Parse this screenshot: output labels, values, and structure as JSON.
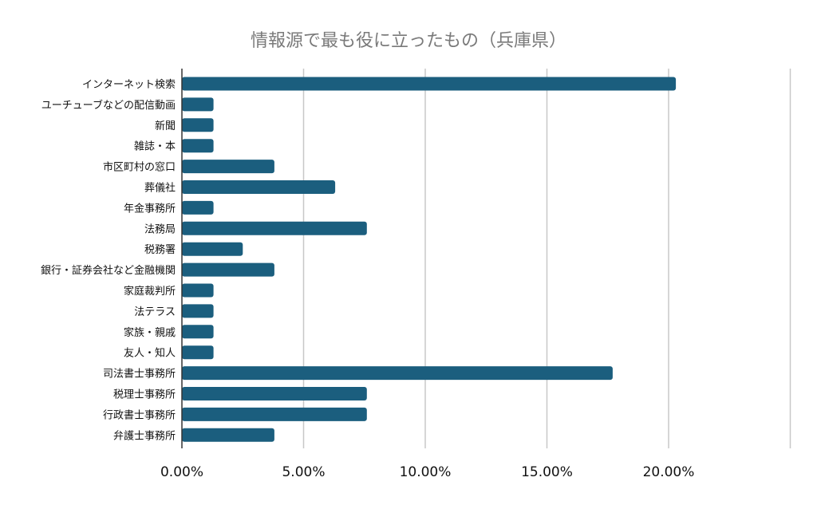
{
  "chart_data": {
    "type": "bar",
    "orientation": "horizontal",
    "title": "情報源で最も役に立ったもの（兵庫県）",
    "xlabel": "",
    "ylabel": "",
    "xlim": [
      0,
      25
    ],
    "x_ticks": [
      0,
      5,
      10,
      15,
      20,
      25
    ],
    "x_tick_labels": [
      "0.00%",
      "5.00%",
      "10.00%",
      "15.00%",
      "20.00%",
      ""
    ],
    "grid": "vertical",
    "legend": "none",
    "bar_color": "#1b5e7e",
    "grid_color": "#c8c8c8",
    "categories": [
      "インターネット検索",
      "ユーチューブなどの配信動画",
      "新聞",
      "雑誌・本",
      "市区町村の窓口",
      "葬儀社",
      "年金事務所",
      "法務局",
      "税務署",
      "銀行・証券会社など金融機関",
      "家庭裁判所",
      "法テラス",
      "家族・親戚",
      "友人・知人",
      "司法書士事務所",
      "税理士事務所",
      "行政書士事務所",
      "弁護士事務所"
    ],
    "values": [
      20.3,
      1.3,
      1.3,
      1.3,
      3.8,
      6.3,
      1.3,
      7.6,
      2.5,
      3.8,
      1.3,
      1.3,
      1.3,
      1.3,
      17.7,
      7.6,
      7.6,
      3.8
    ]
  }
}
